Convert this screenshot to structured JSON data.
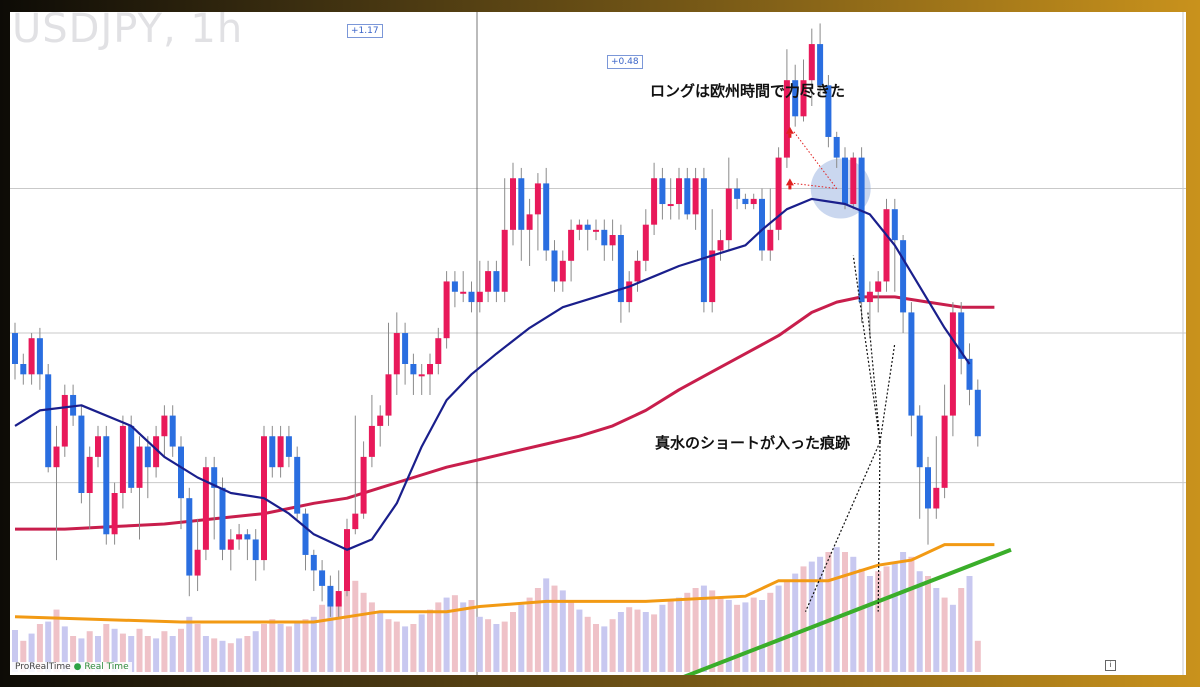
{
  "watermark": "USDJPY, 1h",
  "badges": {
    "top": "+1.17",
    "second": "+0.48"
  },
  "annotations": {
    "long_exhausted": "ロングは欧州時間で力尽きた",
    "short_trace": "真水のショートが入った痕跡"
  },
  "footer": {
    "brand": "ProRealTime",
    "status": "Real Time",
    "info": "i"
  },
  "colors": {
    "up": "#e8195a",
    "down": "#2a6ee0",
    "ma_short": "#1a1f8c",
    "ma_long": "#c81e4c",
    "orange_line": "#f29a14",
    "trend_line": "#3aae2a",
    "volume_up": "#efc2c8",
    "volume_down": "#c8c8f0",
    "highlight": "#8aa6dc",
    "arrow": "#e02020"
  },
  "chart_data": {
    "type": "candlestick",
    "symbol": "USDJPY",
    "timeframe": "1h",
    "ylim": [
      0,
      100
    ],
    "horizontal_levels": [
      84,
      56,
      27
    ],
    "candles": [
      [
        0,
        56,
        50,
        58,
        47
      ],
      [
        1,
        50,
        48,
        52,
        46
      ],
      [
        2,
        48,
        55,
        56,
        46
      ],
      [
        3,
        55,
        48,
        57,
        45
      ],
      [
        4,
        48,
        30,
        50,
        29
      ],
      [
        5,
        30,
        34,
        38,
        12
      ],
      [
        6,
        34,
        44,
        46,
        32
      ],
      [
        7,
        44,
        40,
        46,
        38
      ],
      [
        8,
        40,
        25,
        42,
        23
      ],
      [
        9,
        25,
        32,
        34,
        18
      ],
      [
        10,
        32,
        36,
        38,
        30
      ],
      [
        11,
        36,
        17,
        38,
        15
      ],
      [
        12,
        17,
        25,
        27,
        15
      ],
      [
        13,
        25,
        38,
        40,
        22
      ],
      [
        14,
        38,
        26,
        40,
        25
      ],
      [
        15,
        26,
        34,
        36,
        16
      ],
      [
        16,
        34,
        30,
        36,
        24
      ],
      [
        17,
        30,
        36,
        38,
        28
      ],
      [
        18,
        36,
        40,
        42,
        32
      ],
      [
        19,
        40,
        34,
        42,
        32
      ],
      [
        20,
        34,
        24,
        36,
        18
      ],
      [
        21,
        24,
        9,
        26,
        5
      ],
      [
        22,
        9,
        14,
        20,
        6
      ],
      [
        23,
        14,
        30,
        32,
        12
      ],
      [
        24,
        30,
        26,
        32,
        16
      ],
      [
        25,
        26,
        14,
        28,
        12
      ],
      [
        26,
        14,
        16,
        18,
        10
      ],
      [
        27,
        16,
        17,
        19,
        14
      ],
      [
        28,
        17,
        16,
        18,
        12
      ],
      [
        29,
        16,
        12,
        18,
        8
      ],
      [
        30,
        12,
        36,
        38,
        10
      ],
      [
        31,
        36,
        30,
        38,
        28
      ],
      [
        32,
        30,
        36,
        38,
        28
      ],
      [
        33,
        36,
        32,
        38,
        30
      ],
      [
        34,
        32,
        21,
        34,
        20
      ],
      [
        35,
        21,
        13,
        22,
        10
      ],
      [
        36,
        13,
        10,
        14,
        6
      ],
      [
        37,
        10,
        7,
        12,
        4
      ],
      [
        38,
        7,
        3,
        9,
        1
      ],
      [
        39,
        3,
        6,
        10,
        1
      ],
      [
        40,
        6,
        18,
        20,
        5
      ],
      [
        41,
        18,
        21,
        40,
        17
      ],
      [
        42,
        21,
        32,
        35,
        20
      ],
      [
        43,
        32,
        38,
        44,
        30
      ],
      [
        44,
        38,
        40,
        42,
        34
      ],
      [
        45,
        40,
        48,
        58,
        38
      ],
      [
        46,
        48,
        56,
        60,
        44
      ],
      [
        47,
        56,
        50,
        58,
        46
      ],
      [
        48,
        50,
        48,
        52,
        44
      ],
      [
        49,
        48,
        48,
        50,
        44
      ],
      [
        50,
        48,
        50,
        52,
        44
      ],
      [
        51,
        50,
        55,
        57,
        48
      ],
      [
        52,
        55,
        66,
        68,
        53
      ],
      [
        53,
        66,
        64,
        68,
        61
      ],
      [
        54,
        64,
        64,
        68,
        62
      ],
      [
        55,
        64,
        62,
        66,
        60
      ],
      [
        56,
        62,
        64,
        70,
        60
      ],
      [
        57,
        64,
        68,
        70,
        62
      ],
      [
        58,
        68,
        64,
        70,
        62
      ],
      [
        59,
        64,
        76,
        86,
        62
      ],
      [
        60,
        76,
        86,
        89,
        73
      ],
      [
        61,
        86,
        76,
        88,
        70
      ],
      [
        62,
        76,
        79,
        82,
        69
      ],
      [
        63,
        79,
        85,
        87,
        72
      ],
      [
        64,
        85,
        72,
        88,
        70
      ],
      [
        65,
        72,
        66,
        74,
        64
      ],
      [
        66,
        66,
        70,
        72,
        64
      ],
      [
        67,
        70,
        76,
        78,
        66
      ],
      [
        68,
        76,
        77,
        78,
        74
      ],
      [
        69,
        77,
        76,
        78,
        72
      ],
      [
        70,
        76,
        76,
        78,
        74
      ],
      [
        71,
        76,
        73,
        78,
        70
      ],
      [
        72,
        73,
        75,
        78,
        70
      ],
      [
        73,
        75,
        62,
        77,
        58
      ],
      [
        74,
        62,
        66,
        68,
        60
      ],
      [
        75,
        66,
        70,
        72,
        64
      ],
      [
        76,
        70,
        77,
        80,
        68
      ],
      [
        77,
        77,
        86,
        89,
        75
      ],
      [
        78,
        86,
        81,
        88,
        78
      ],
      [
        79,
        81,
        81,
        86,
        78
      ],
      [
        80,
        81,
        86,
        88,
        78
      ],
      [
        81,
        86,
        79,
        88,
        78
      ],
      [
        82,
        79,
        86,
        88,
        76
      ],
      [
        83,
        86,
        62,
        88,
        60
      ],
      [
        84,
        62,
        72,
        80,
        60
      ],
      [
        85,
        72,
        74,
        76,
        70
      ],
      [
        86,
        74,
        84,
        90,
        72
      ],
      [
        87,
        84,
        82,
        86,
        80
      ],
      [
        88,
        82,
        81,
        83,
        80
      ],
      [
        89,
        81,
        82,
        83,
        80
      ],
      [
        90,
        82,
        72,
        84,
        70
      ],
      [
        91,
        72,
        76,
        84,
        70
      ],
      [
        92,
        76,
        90,
        92,
        74
      ],
      [
        93,
        90,
        105,
        111,
        88
      ],
      [
        94,
        105,
        98,
        108,
        96
      ],
      [
        95,
        98,
        105,
        109,
        97
      ],
      [
        96,
        105,
        112,
        115,
        100
      ],
      [
        97,
        112,
        104,
        116,
        102
      ],
      [
        98,
        104,
        94,
        106,
        92
      ],
      [
        99,
        94,
        90,
        95,
        88
      ],
      [
        100,
        90,
        81,
        92,
        80
      ],
      [
        101,
        81,
        90,
        91,
        80
      ],
      [
        102,
        90,
        62,
        92,
        58
      ],
      [
        103,
        62,
        64,
        66,
        55
      ],
      [
        104,
        64,
        66,
        68,
        60
      ],
      [
        105,
        66,
        80,
        82,
        64
      ],
      [
        106,
        80,
        74,
        82,
        64
      ],
      [
        107,
        74,
        60,
        75,
        56
      ],
      [
        108,
        60,
        40,
        62,
        36
      ],
      [
        109,
        40,
        30,
        42,
        20
      ],
      [
        110,
        30,
        22,
        32,
        15
      ],
      [
        111,
        22,
        26,
        36,
        20
      ],
      [
        112,
        26,
        40,
        46,
        24
      ],
      [
        113,
        40,
        60,
        62,
        36
      ],
      [
        114,
        60,
        51,
        62,
        48
      ],
      [
        115,
        51,
        45,
        54,
        42
      ],
      [
        116,
        45,
        36,
        47,
        34
      ]
    ],
    "ma_short": [
      [
        0,
        38
      ],
      [
        3,
        41
      ],
      [
        8,
        42
      ],
      [
        14,
        38
      ],
      [
        18,
        32
      ],
      [
        22,
        28
      ],
      [
        26,
        25
      ],
      [
        30,
        24
      ],
      [
        33,
        21
      ],
      [
        36,
        17
      ],
      [
        40,
        14
      ],
      [
        43,
        16
      ],
      [
        46,
        23
      ],
      [
        49,
        34
      ],
      [
        52,
        43
      ],
      [
        55,
        48
      ],
      [
        58,
        52
      ],
      [
        62,
        57
      ],
      [
        66,
        61
      ],
      [
        70,
        63
      ],
      [
        74,
        65
      ],
      [
        77,
        67
      ],
      [
        80,
        69
      ],
      [
        84,
        71
      ],
      [
        88,
        73
      ],
      [
        90,
        76
      ],
      [
        93,
        80
      ],
      [
        96,
        82
      ],
      [
        100,
        81
      ],
      [
        103,
        79
      ],
      [
        106,
        73
      ],
      [
        109,
        65
      ],
      [
        112,
        57
      ],
      [
        115,
        50
      ]
    ],
    "ma_long": [
      [
        0,
        18
      ],
      [
        6,
        18
      ],
      [
        12,
        18.5
      ],
      [
        18,
        19
      ],
      [
        24,
        20
      ],
      [
        30,
        21
      ],
      [
        33,
        22
      ],
      [
        36,
        23
      ],
      [
        40,
        24
      ],
      [
        44,
        26
      ],
      [
        48,
        28
      ],
      [
        52,
        30
      ],
      [
        56,
        31.5
      ],
      [
        60,
        33
      ],
      [
        64,
        34.5
      ],
      [
        68,
        36
      ],
      [
        72,
        38
      ],
      [
        76,
        41
      ],
      [
        80,
        45
      ],
      [
        84,
        48.5
      ],
      [
        88,
        52
      ],
      [
        92,
        55.5
      ],
      [
        96,
        60
      ],
      [
        99,
        62
      ],
      [
        102,
        63
      ],
      [
        106,
        63
      ],
      [
        110,
        62
      ],
      [
        114,
        61
      ],
      [
        118,
        61
      ]
    ],
    "orange_line": [
      [
        0,
        1
      ],
      [
        20,
        0
      ],
      [
        36,
        0
      ],
      [
        44,
        2
      ],
      [
        52,
        2
      ],
      [
        56,
        3
      ],
      [
        64,
        4
      ],
      [
        76,
        4
      ],
      [
        88,
        5
      ],
      [
        92,
        8
      ],
      [
        98,
        8
      ],
      [
        104,
        11
      ],
      [
        108,
        12
      ],
      [
        112,
        15
      ],
      [
        118,
        15
      ]
    ],
    "trend_line": [
      [
        72,
        -16
      ],
      [
        120,
        14
      ]
    ],
    "volume": [
      [
        0,
        35,
        "down"
      ],
      [
        1,
        26,
        "up"
      ],
      [
        2,
        32,
        "down"
      ],
      [
        3,
        40,
        "up"
      ],
      [
        4,
        42,
        "down"
      ],
      [
        5,
        52,
        "up"
      ],
      [
        6,
        38,
        "down"
      ],
      [
        7,
        30,
        "up"
      ],
      [
        8,
        28,
        "down"
      ],
      [
        9,
        34,
        "up"
      ],
      [
        10,
        30,
        "down"
      ],
      [
        11,
        40,
        "up"
      ],
      [
        12,
        36,
        "down"
      ],
      [
        13,
        32,
        "up"
      ],
      [
        14,
        30,
        "down"
      ],
      [
        15,
        36,
        "up"
      ],
      [
        16,
        30,
        "up"
      ],
      [
        17,
        28,
        "down"
      ],
      [
        18,
        34,
        "up"
      ],
      [
        19,
        30,
        "down"
      ],
      [
        20,
        36,
        "up"
      ],
      [
        21,
        46,
        "down"
      ],
      [
        22,
        40,
        "up"
      ],
      [
        23,
        30,
        "down"
      ],
      [
        24,
        28,
        "up"
      ],
      [
        25,
        26,
        "down"
      ],
      [
        26,
        24,
        "up"
      ],
      [
        27,
        28,
        "down"
      ],
      [
        28,
        30,
        "up"
      ],
      [
        29,
        34,
        "down"
      ],
      [
        30,
        40,
        "up"
      ],
      [
        31,
        44,
        "up"
      ],
      [
        32,
        40,
        "down"
      ],
      [
        33,
        38,
        "up"
      ],
      [
        34,
        42,
        "down"
      ],
      [
        35,
        44,
        "up"
      ],
      [
        36,
        46,
        "down"
      ],
      [
        37,
        56,
        "up"
      ],
      [
        38,
        60,
        "down"
      ],
      [
        39,
        66,
        "up"
      ],
      [
        40,
        70,
        "up"
      ],
      [
        41,
        76,
        "up"
      ],
      [
        42,
        66,
        "up"
      ],
      [
        43,
        58,
        "up"
      ],
      [
        44,
        50,
        "down"
      ],
      [
        45,
        44,
        "up"
      ],
      [
        46,
        42,
        "up"
      ],
      [
        47,
        38,
        "down"
      ],
      [
        48,
        40,
        "up"
      ],
      [
        49,
        48,
        "down"
      ],
      [
        50,
        52,
        "up"
      ],
      [
        51,
        58,
        "up"
      ],
      [
        52,
        62,
        "down"
      ],
      [
        53,
        64,
        "up"
      ],
      [
        54,
        58,
        "down"
      ],
      [
        55,
        60,
        "up"
      ],
      [
        56,
        46,
        "down"
      ],
      [
        57,
        44,
        "up"
      ],
      [
        58,
        40,
        "down"
      ],
      [
        59,
        42,
        "up"
      ],
      [
        60,
        50,
        "up"
      ],
      [
        61,
        56,
        "down"
      ],
      [
        62,
        62,
        "up"
      ],
      [
        63,
        70,
        "up"
      ],
      [
        64,
        78,
        "down"
      ],
      [
        65,
        72,
        "up"
      ],
      [
        66,
        68,
        "down"
      ],
      [
        67,
        60,
        "up"
      ],
      [
        68,
        52,
        "down"
      ],
      [
        69,
        46,
        "up"
      ],
      [
        70,
        40,
        "up"
      ],
      [
        71,
        38,
        "down"
      ],
      [
        72,
        44,
        "up"
      ],
      [
        73,
        50,
        "down"
      ],
      [
        74,
        54,
        "up"
      ],
      [
        75,
        52,
        "up"
      ],
      [
        76,
        50,
        "down"
      ],
      [
        77,
        48,
        "up"
      ],
      [
        78,
        56,
        "down"
      ],
      [
        79,
        60,
        "up"
      ],
      [
        80,
        62,
        "down"
      ],
      [
        81,
        66,
        "up"
      ],
      [
        82,
        70,
        "up"
      ],
      [
        83,
        72,
        "down"
      ],
      [
        84,
        68,
        "up"
      ],
      [
        85,
        62,
        "up"
      ],
      [
        86,
        60,
        "down"
      ],
      [
        87,
        56,
        "up"
      ],
      [
        88,
        58,
        "down"
      ],
      [
        89,
        62,
        "up"
      ],
      [
        90,
        60,
        "down"
      ],
      [
        91,
        66,
        "up"
      ],
      [
        92,
        72,
        "down"
      ],
      [
        93,
        76,
        "up"
      ],
      [
        94,
        82,
        "down"
      ],
      [
        95,
        88,
        "up"
      ],
      [
        96,
        92,
        "down"
      ],
      [
        97,
        96,
        "down"
      ],
      [
        98,
        100,
        "up"
      ],
      [
        99,
        104,
        "down"
      ],
      [
        100,
        100,
        "up"
      ],
      [
        101,
        96,
        "down"
      ],
      [
        102,
        86,
        "up"
      ],
      [
        103,
        80,
        "down"
      ],
      [
        104,
        84,
        "up"
      ],
      [
        105,
        88,
        "up"
      ],
      [
        106,
        92,
        "down"
      ],
      [
        107,
        100,
        "down"
      ],
      [
        108,
        96,
        "up"
      ],
      [
        109,
        84,
        "down"
      ],
      [
        110,
        80,
        "up"
      ],
      [
        111,
        70,
        "down"
      ],
      [
        112,
        62,
        "up"
      ],
      [
        113,
        56,
        "down"
      ],
      [
        114,
        70,
        "up"
      ],
      [
        115,
        80,
        "down"
      ],
      [
        116,
        26,
        "up"
      ]
    ]
  }
}
